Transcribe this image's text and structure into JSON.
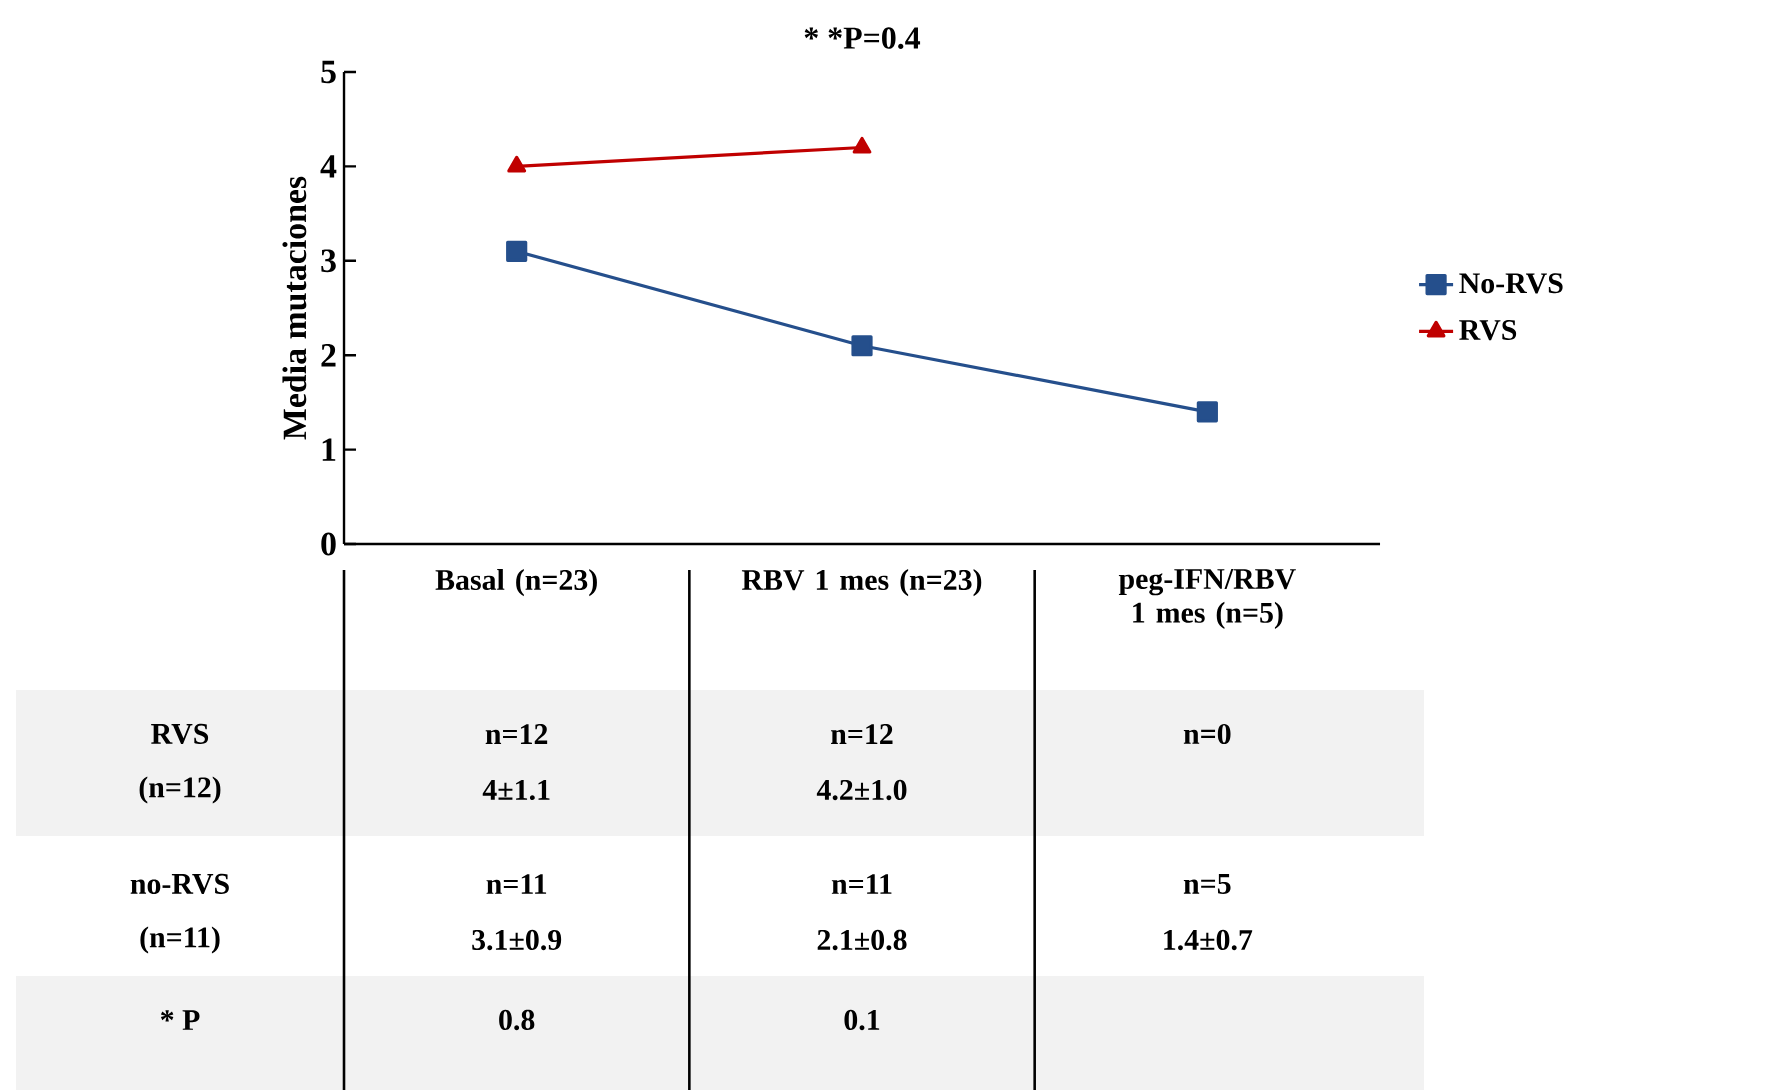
{
  "chart_data": {
    "type": "line",
    "title": "* *P=0.4",
    "ylabel": "Media mutaciones",
    "categories": [
      "Basal (n=23)",
      "RBV 1 mes (n=23)",
      "peg-IFN/RBV 1 mes (n=5)"
    ],
    "series": [
      {
        "name": "No-RVS",
        "color": "#254f8c",
        "values": [
          3.1,
          2.1,
          1.4
        ],
        "marker": "square"
      },
      {
        "name": "RVS",
        "color": "#c00000",
        "values": [
          4,
          4.2,
          null
        ],
        "marker": "triangle"
      }
    ],
    "ylim": [
      0,
      5
    ],
    "yticks": [
      0,
      1,
      2,
      3,
      4,
      5
    ],
    "legend": "right",
    "grid": false,
    "annotations": [
      "RVS",
      "(n=12)",
      "n=12",
      "4±1.1",
      "n=12",
      "4.2±1.0",
      "n=0",
      "no-RVS",
      "(n=11)",
      "n=11",
      "3.1±0.9",
      "n=11",
      "2.1±0.8",
      "n=5",
      "1.4±0.7",
      "* P",
      "0.8",
      "0.1"
    ]
  }
}
